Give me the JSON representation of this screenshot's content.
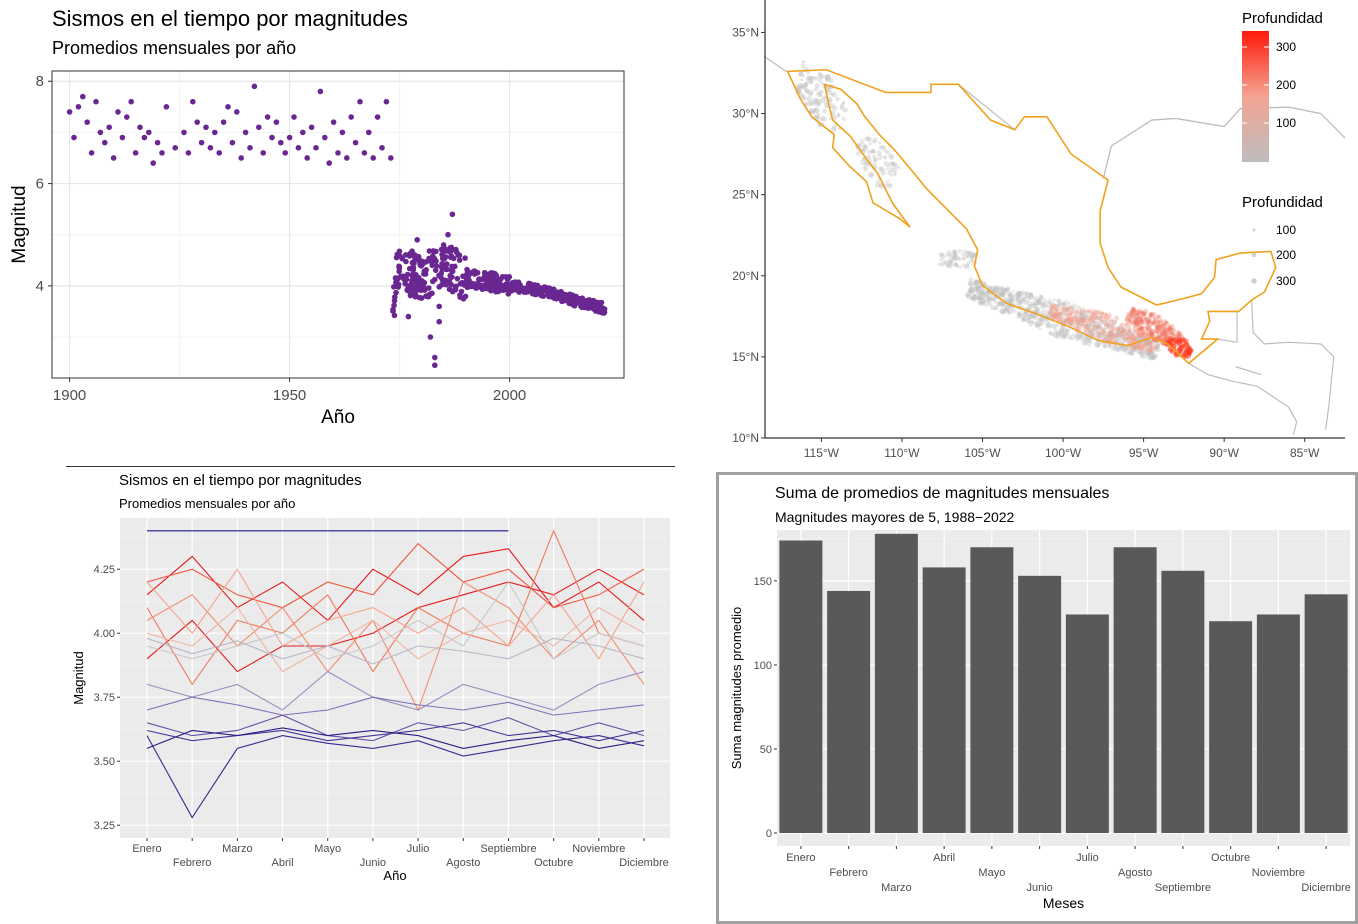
{
  "colors": {
    "purple": "#6a2791",
    "bar": "#595959",
    "panel_bg": "#ebebeb",
    "border_orange": "#f0a11d",
    "navy": "#1a1a8a"
  },
  "chart_data": [
    {
      "type": "scatter",
      "title": "Sismos en el tiempo por magnitudes",
      "subtitle": "Promedios mensuales por año",
      "xlabel": "Año",
      "ylabel": "Magnitud",
      "xlim": [
        1896,
        2026
      ],
      "ylim": [
        2.2,
        8.2
      ],
      "x_ticks": [
        "1900",
        "1950",
        "2000"
      ],
      "y_ticks": [
        "4",
        "6",
        "8"
      ],
      "grid": true,
      "early_points": [
        [
          1900,
          7.4
        ],
        [
          1901,
          6.9
        ],
        [
          1902,
          7.5
        ],
        [
          1903,
          7.7
        ],
        [
          1904,
          7.2
        ],
        [
          1905,
          6.6
        ],
        [
          1906,
          7.6
        ],
        [
          1907,
          7.0
        ],
        [
          1908,
          6.8
        ],
        [
          1909,
          7.1
        ],
        [
          1910,
          6.5
        ],
        [
          1911,
          7.4
        ],
        [
          1912,
          6.9
        ],
        [
          1913,
          7.3
        ],
        [
          1914,
          7.6
        ],
        [
          1915,
          6.6
        ],
        [
          1916,
          7.1
        ],
        [
          1917,
          6.9
        ],
        [
          1918,
          7.0
        ],
        [
          1919,
          6.4
        ],
        [
          1920,
          6.8
        ],
        [
          1921,
          6.6
        ],
        [
          1922,
          7.5
        ],
        [
          1924,
          6.7
        ],
        [
          1926,
          7.0
        ],
        [
          1927,
          6.6
        ],
        [
          1928,
          7.6
        ],
        [
          1929,
          7.2
        ],
        [
          1930,
          6.8
        ],
        [
          1931,
          7.1
        ],
        [
          1932,
          6.7
        ],
        [
          1933,
          7.0
        ],
        [
          1934,
          6.6
        ],
        [
          1935,
          7.2
        ],
        [
          1936,
          7.5
        ],
        [
          1937,
          6.8
        ],
        [
          1938,
          7.4
        ],
        [
          1939,
          6.5
        ],
        [
          1940,
          7.0
        ],
        [
          1941,
          6.7
        ],
        [
          1942,
          7.9
        ],
        [
          1943,
          7.1
        ],
        [
          1944,
          6.6
        ],
        [
          1945,
          7.3
        ],
        [
          1946,
          6.9
        ],
        [
          1947,
          7.2
        ],
        [
          1948,
          6.8
        ],
        [
          1949,
          6.6
        ],
        [
          1950,
          6.9
        ],
        [
          1951,
          7.3
        ],
        [
          1952,
          6.7
        ],
        [
          1953,
          7.0
        ],
        [
          1954,
          6.5
        ],
        [
          1955,
          7.1
        ],
        [
          1956,
          6.7
        ],
        [
          1957,
          7.8
        ],
        [
          1958,
          6.9
        ],
        [
          1959,
          6.4
        ],
        [
          1960,
          7.2
        ],
        [
          1961,
          6.6
        ],
        [
          1962,
          7.0
        ],
        [
          1963,
          6.5
        ],
        [
          1964,
          7.3
        ],
        [
          1965,
          6.8
        ],
        [
          1966,
          7.6
        ],
        [
          1967,
          6.6
        ],
        [
          1968,
          7.0
        ],
        [
          1969,
          6.5
        ],
        [
          1970,
          7.3
        ],
        [
          1971,
          6.7
        ],
        [
          1972,
          7.6
        ],
        [
          1973,
          6.5
        ]
      ],
      "late_trend": [
        [
          1974,
          4.3
        ],
        [
          1980,
          4.2
        ],
        [
          1986,
          4.35
        ],
        [
          1990,
          4.15
        ],
        [
          1995,
          4.1
        ],
        [
          2000,
          4.0
        ],
        [
          2005,
          3.95
        ],
        [
          2010,
          3.85
        ],
        [
          2015,
          3.7
        ],
        [
          2020,
          3.6
        ],
        [
          2022,
          3.55
        ]
      ],
      "late_outliers": [
        [
          1981,
          3.8
        ],
        [
          1982,
          3.0
        ],
        [
          1983,
          2.6
        ],
        [
          1984,
          3.3
        ],
        [
          1985,
          4.8
        ],
        [
          1987,
          5.4
        ],
        [
          1983,
          2.45
        ],
        [
          1984,
          3.6
        ],
        [
          1979,
          4.9
        ],
        [
          1986,
          5.0
        ],
        [
          1977,
          3.4
        ]
      ]
    },
    {
      "type": "map",
      "legend_gradient_title": "Profundidad",
      "legend_gradient_ticks": [
        "300",
        "200",
        "100"
      ],
      "legend_size_title": "Profundidad",
      "legend_size_ticks": [
        "100",
        "200",
        "300"
      ],
      "lat_ticks": [
        "35°N",
        "30°N",
        "25°N",
        "20°N",
        "15°N",
        "10°N"
      ],
      "lon_ticks": [
        "115°W",
        "110°W",
        "105°W",
        "100°W",
        "95°W",
        "90°W",
        "85°W"
      ]
    },
    {
      "type": "line",
      "title": "Sismos en el tiempo por magnitudes",
      "subtitle": "Promedios mensuales por año",
      "xlabel": "Año",
      "ylabel": "Magnitud",
      "categories": [
        "Enero",
        "Febrero",
        "Marzo",
        "Abril",
        "Mayo",
        "Junio",
        "Julio",
        "Agosto",
        "Septiembre",
        "Octubre",
        "Noviembre",
        "Diciembre"
      ],
      "y_ticks": [
        "4.25",
        "4.00",
        "3.75",
        "3.50",
        "3.25"
      ],
      "ylim": [
        3.2,
        4.45
      ],
      "series": [
        {
          "color": "#1a1a8a",
          "values": [
            4.4,
            4.4,
            4.4,
            4.4,
            4.4,
            4.4,
            4.4,
            4.4,
            4.4,
            null,
            null,
            null
          ]
        },
        {
          "color": "#e41a1c",
          "values": [
            4.15,
            4.3,
            4.1,
            4.2,
            4.05,
            4.25,
            4.15,
            4.3,
            4.33,
            4.1,
            4.2,
            4.05
          ]
        },
        {
          "color": "#e41a1c",
          "values": [
            3.9,
            4.05,
            3.85,
            3.95,
            3.95,
            4.0,
            4.1,
            4.15,
            4.2,
            4.15,
            4.25,
            4.15
          ]
        },
        {
          "color": "#ef553b",
          "values": [
            4.2,
            4.25,
            4.15,
            4.1,
            4.2,
            4.15,
            4.35,
            4.2,
            4.25,
            4.1,
            4.15,
            4.25
          ]
        },
        {
          "color": "#f07a5c",
          "values": [
            4.1,
            3.8,
            4.05,
            4.0,
            4.15,
            3.85,
            4.1,
            4.0,
            3.95,
            4.4,
            4.0,
            3.95
          ]
        },
        {
          "color": "#f28e72",
          "values": [
            4.05,
            4.15,
            3.95,
            4.1,
            3.85,
            4.05,
            3.7,
            4.2,
            4.1,
            3.9,
            4.05,
            3.8
          ]
        },
        {
          "color": "#f5a58e",
          "values": [
            4.2,
            4.0,
            4.25,
            3.95,
            4.05,
            4.1,
            4.0,
            4.1,
            3.95,
            4.15,
            3.9,
            4.2
          ]
        },
        {
          "color": "#f0b5a5",
          "values": [
            4.0,
            3.95,
            4.1,
            3.85,
            3.95,
            4.05,
            3.9,
            4.0,
            4.05,
            3.95,
            4.1,
            4.0
          ]
        },
        {
          "color": "#c8c8c8",
          "values": [
            3.95,
            3.9,
            3.95,
            4.0,
            3.9,
            3.95,
            4.05,
            3.95,
            4.2,
            3.9,
            4.0,
            3.95
          ]
        },
        {
          "color": "#b8b8c8",
          "values": [
            3.98,
            3.92,
            3.97,
            3.9,
            3.95,
            3.88,
            3.95,
            3.93,
            3.9,
            3.98,
            3.95,
            3.9
          ]
        },
        {
          "color": "#9a90c0",
          "values": [
            3.8,
            3.75,
            3.8,
            3.7,
            3.85,
            3.75,
            3.7,
            3.8,
            3.75,
            3.7,
            3.8,
            3.85
          ]
        },
        {
          "color": "#8070b5",
          "values": [
            3.7,
            3.75,
            3.72,
            3.68,
            3.7,
            3.75,
            3.72,
            3.7,
            3.73,
            3.68,
            3.7,
            3.72
          ]
        },
        {
          "color": "#6a50a8",
          "values": [
            3.65,
            3.6,
            3.62,
            3.68,
            3.6,
            3.58,
            3.65,
            3.62,
            3.67,
            3.6,
            3.65,
            3.6
          ]
        },
        {
          "color": "#4a3598",
          "values": [
            3.62,
            3.58,
            3.6,
            3.62,
            3.58,
            3.6,
            3.62,
            3.65,
            3.6,
            3.62,
            3.58,
            3.62
          ]
        },
        {
          "color": "#3a2890",
          "values": [
            3.6,
            3.28,
            3.55,
            3.6,
            3.57,
            3.55,
            3.58,
            3.52,
            3.55,
            3.58,
            3.6,
            3.56
          ]
        },
        {
          "color": "#2a1e88",
          "values": [
            3.55,
            3.62,
            3.6,
            3.63,
            3.6,
            3.62,
            3.6,
            3.55,
            3.58,
            3.6,
            3.55,
            3.58
          ]
        }
      ]
    },
    {
      "type": "bar",
      "title": "Suma de promedios de magnitudes mensuales",
      "subtitle": "Magnitudes mayores de 5, 1988−2022",
      "xlabel": "Meses",
      "ylabel": "Suma magnitudes promedio",
      "categories": [
        "Enero",
        "Febrero",
        "Marzo",
        "Abril",
        "Mayo",
        "Junio",
        "Julio",
        "Agosto",
        "Septiembre",
        "Octubre",
        "Noviembre",
        "Diciembre"
      ],
      "values": [
        174,
        144,
        178,
        158,
        170,
        153,
        130,
        170,
        156,
        126,
        130,
        142
      ],
      "y_ticks": [
        "150",
        "100",
        "50",
        "0"
      ],
      "ylim": [
        0,
        188
      ]
    }
  ]
}
